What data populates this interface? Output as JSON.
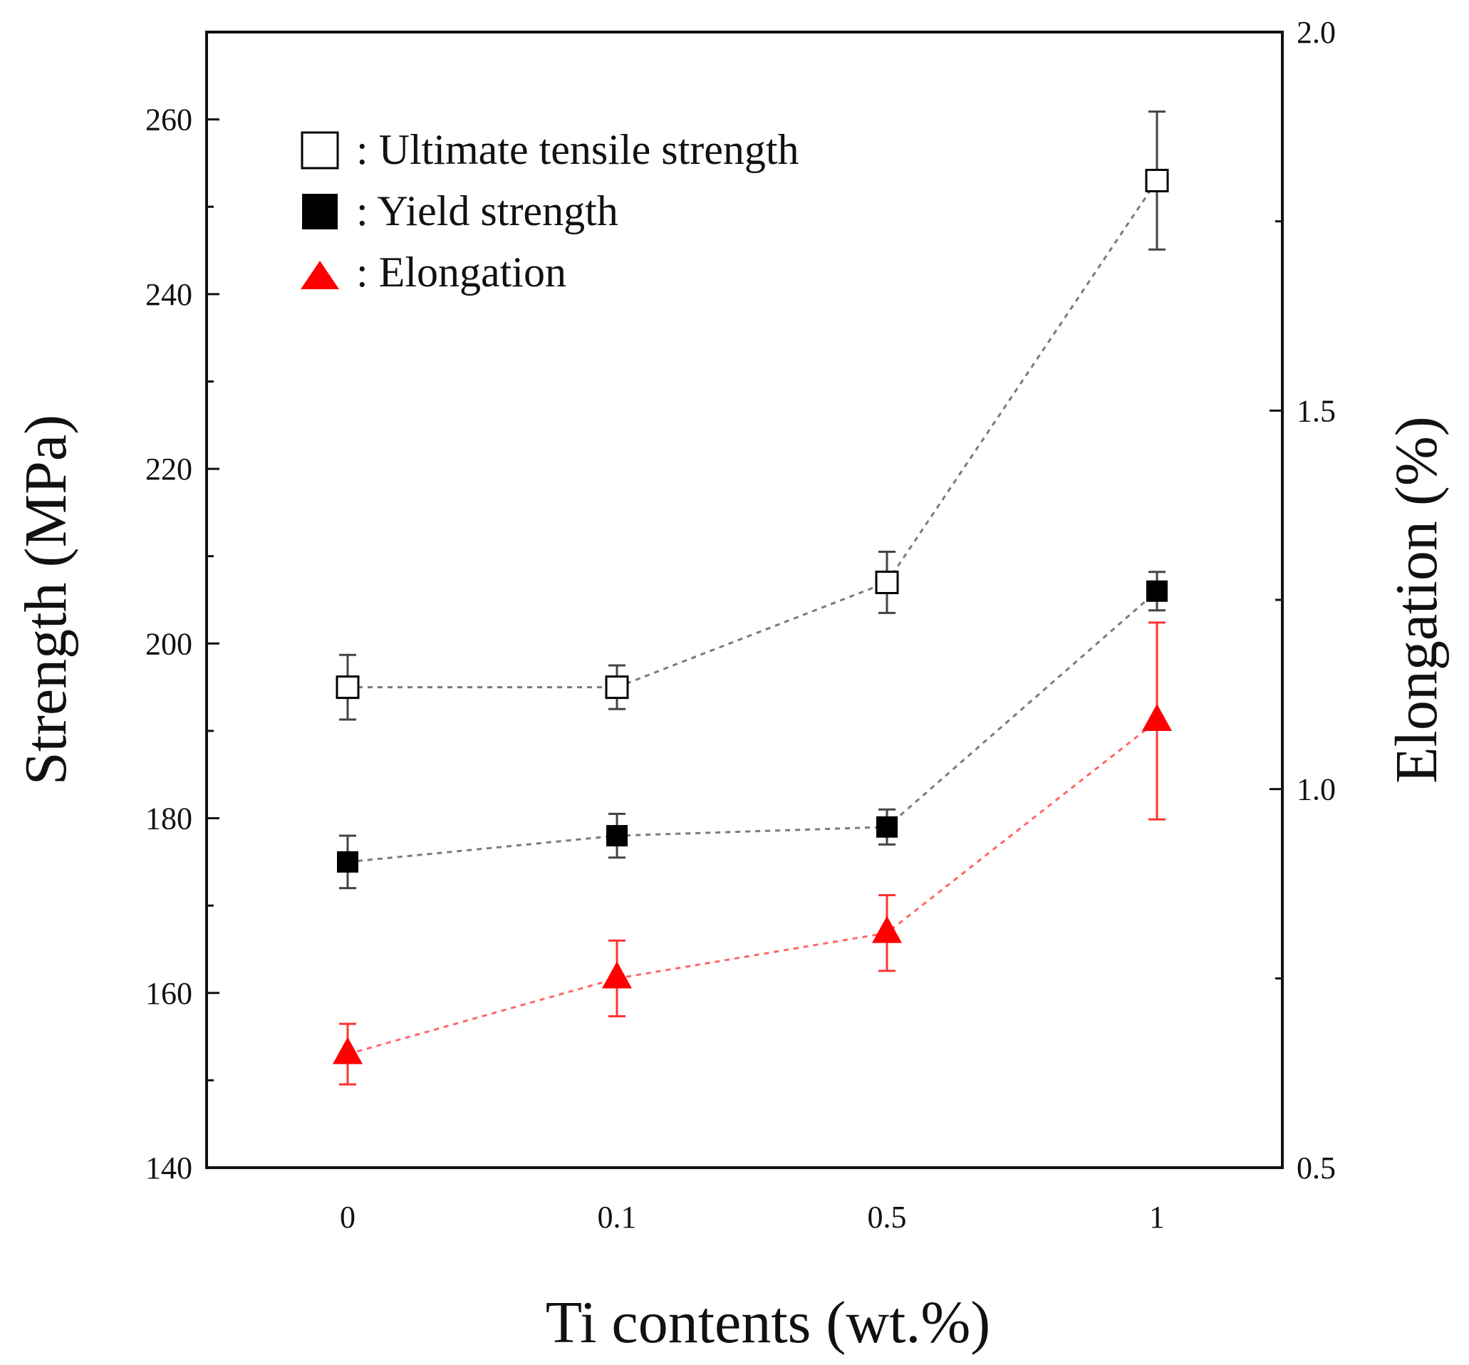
{
  "chart_data": {
    "type": "scatter",
    "xlabel": "Ti contents (wt.%)",
    "ylabel": "Strength (MPa)",
    "y2label": "Elongation (%)",
    "categories": [
      "0",
      "0.1",
      "0.5",
      "1"
    ],
    "ylim": [
      140,
      270
    ],
    "y2lim": [
      0.5,
      2.0
    ],
    "yticks": [
      140,
      160,
      180,
      200,
      220,
      240,
      260
    ],
    "y2ticks": [
      0.5,
      1.0,
      1.5,
      2.0
    ],
    "y2tick_labels": [
      "0.5",
      "1.0",
      "1.5",
      "2.0"
    ],
    "legend_position": "top-left",
    "series": [
      {
        "name": "Ultimate tensile strength",
        "legend_label": ": Ultimate tensile strength",
        "axis": "left",
        "marker": "square-open",
        "color": "#000000",
        "line_color": "#7a7a7a",
        "values": [
          195,
          195,
          207,
          253
        ],
        "errors": [
          3.7,
          2.5,
          3.5,
          7.9
        ]
      },
      {
        "name": "Yield strength",
        "legend_label": ": Yield strength",
        "axis": "left",
        "marker": "square-filled",
        "color": "#000000",
        "line_color": "#7a7a7a",
        "values": [
          175,
          178,
          179,
          206
        ],
        "errors": [
          3.0,
          2.5,
          2.0,
          2.2
        ]
      },
      {
        "name": "Elongation",
        "legend_label": ": Elongation",
        "axis": "right",
        "marker": "triangle-filled",
        "color": "#ff0000",
        "line_color": "#ff6666",
        "values": [
          0.65,
          0.75,
          0.81,
          1.09
        ],
        "errors": [
          0.04,
          0.05,
          0.05,
          0.13
        ]
      }
    ]
  }
}
